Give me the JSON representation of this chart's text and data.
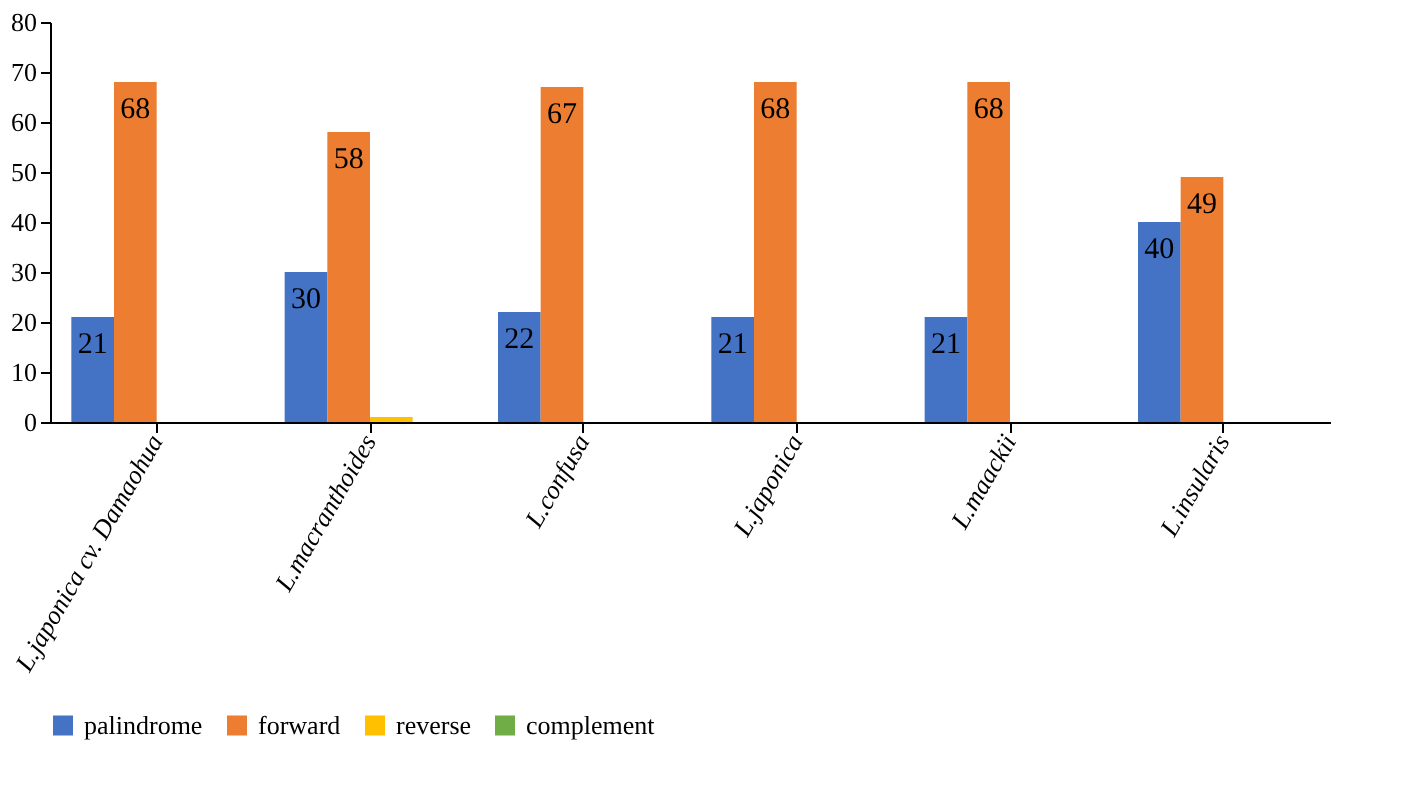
{
  "chart_data": {
    "type": "bar",
    "categories": [
      "L.japonica cv. Damaohua",
      "L.macranthoides",
      "L.confusa",
      "L.japonica",
      "L.maackii",
      "L.insularis"
    ],
    "series": [
      {
        "name": "palindrome",
        "color": "#4472c4",
        "values": [
          21,
          30,
          22,
          21,
          21,
          40
        ],
        "value_labels": [
          "21",
          "30",
          "22",
          "21",
          "21",
          "40"
        ]
      },
      {
        "name": "forward",
        "color": "#ed7d31",
        "values": [
          68,
          58,
          67,
          68,
          68,
          49
        ],
        "value_labels": [
          "68",
          "58",
          "67",
          "68",
          "68",
          "49"
        ]
      },
      {
        "name": "reverse",
        "color": "#ffc000",
        "values": [
          0,
          1,
          0,
          0,
          0,
          0
        ]
      },
      {
        "name": "complement",
        "color": "#70ad47",
        "values": [
          0,
          0,
          0,
          0,
          0,
          0
        ]
      }
    ],
    "ylim": [
      0,
      80
    ],
    "yticks": [
      0,
      10,
      20,
      30,
      40,
      50,
      60,
      70,
      80
    ],
    "grid": false,
    "legend": "bottom"
  }
}
